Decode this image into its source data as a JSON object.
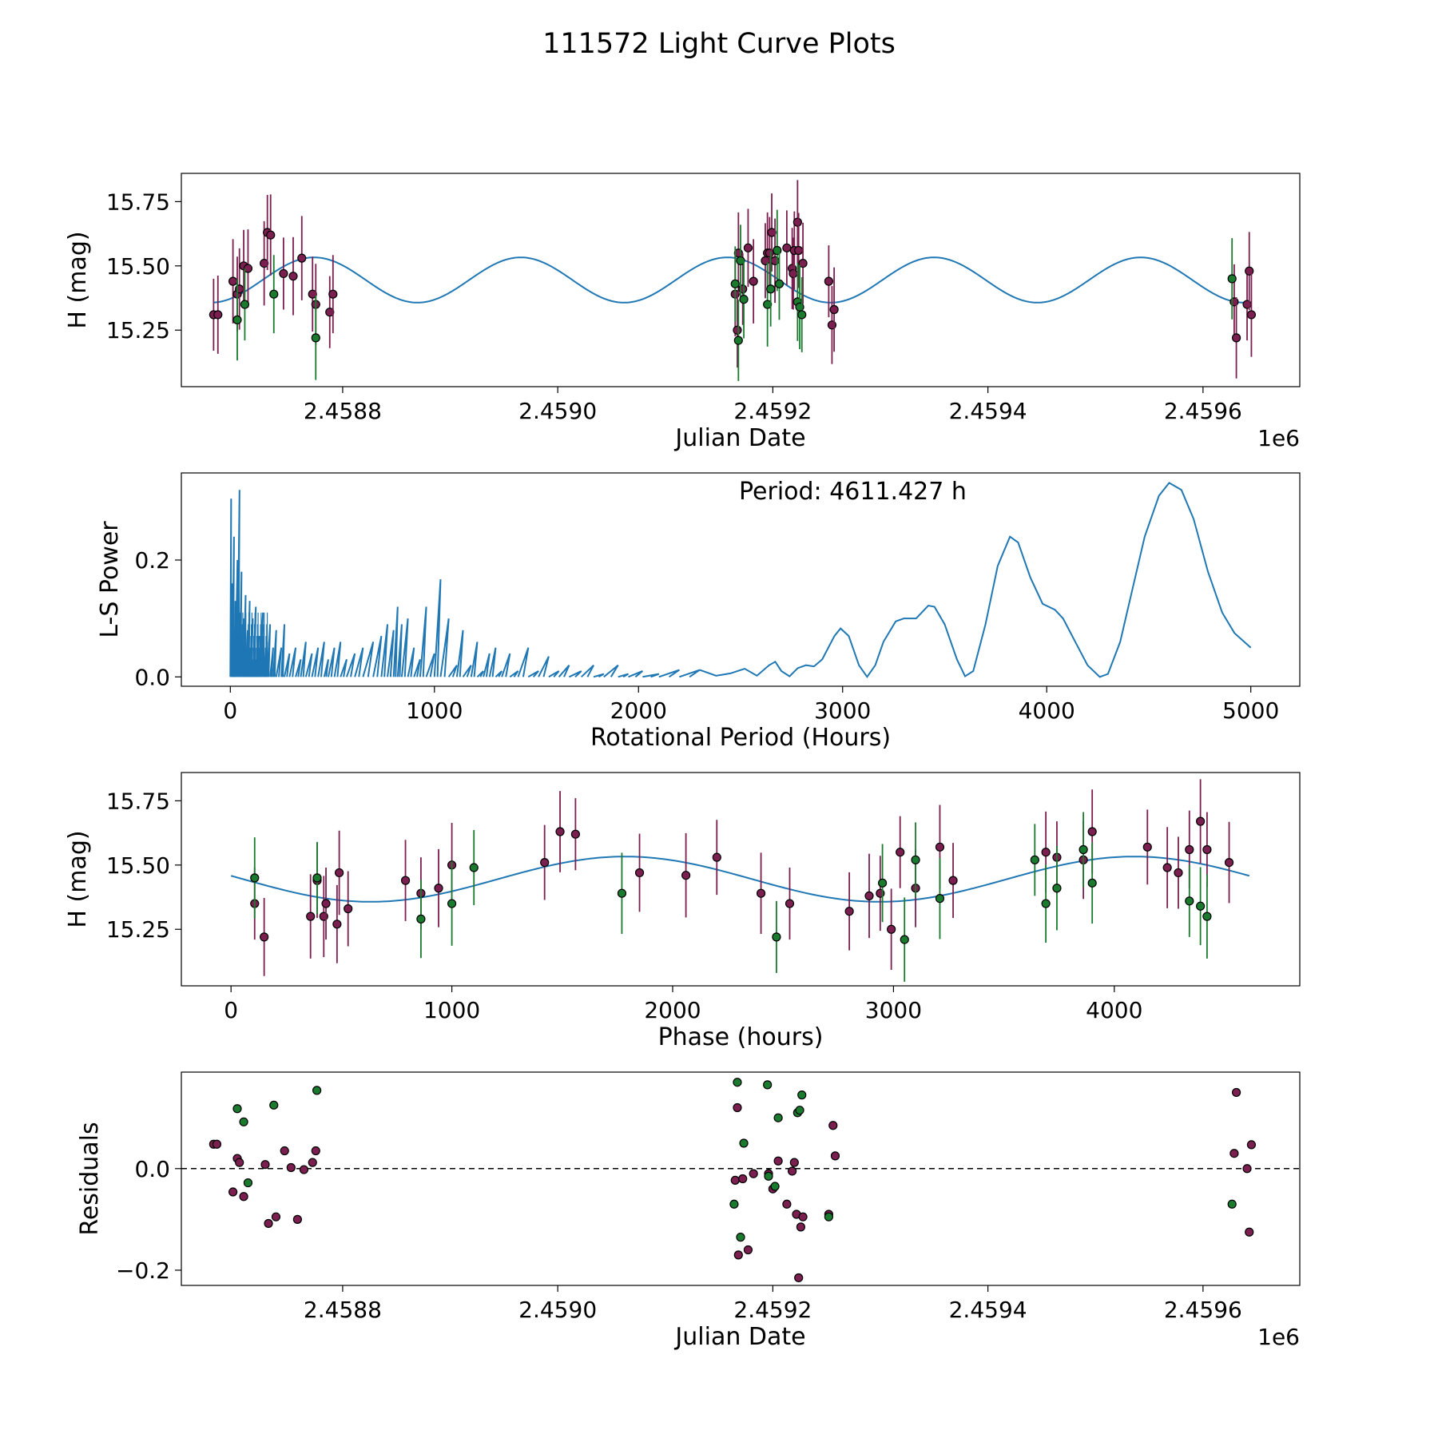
{
  "title": "111572 Light Curve Plots",
  "colors": {
    "model": "#1f77b4",
    "band_a": "#7a1f4f",
    "band_b": "#1a7a2e",
    "marker_edge": "#000000"
  },
  "chart_data": [
    {
      "type": "scatter",
      "name": "light-curve",
      "xlabel": "Julian Date",
      "ylabel": "H (mag)",
      "offset_label": "1e6",
      "xlim": [
        2.45865,
        2.45969
      ],
      "ylim": [
        15.03,
        15.86
      ],
      "xticks": [
        2.4588,
        2.459,
        2.4592,
        2.4594,
        2.4596
      ],
      "xtick_labels": [
        "2.4588",
        "2.4590",
        "2.4592",
        "2.4594",
        "2.4596"
      ],
      "yticks": [
        15.25,
        15.5,
        15.75
      ],
      "ytick_labels": [
        "15.25",
        "15.50",
        "15.75"
      ],
      "model": {
        "mean": 15.445,
        "amplitude": 0.088,
        "period": 0.000192143,
        "t0": 2.4586774,
        "x_start": 2.45868,
        "x_end": 2.45964
      },
      "series": [
        {
          "name": "band_a",
          "x": [
            2.45868,
            2.458684,
            2.458698,
            2.458702,
            2.458704,
            2.458708,
            2.458712,
            2.458727,
            2.45873,
            2.458733,
            2.458745,
            2.458754,
            2.458762,
            2.458772,
            2.458775,
            2.458788,
            2.458791,
            2.459165,
            2.459167,
            2.459168,
            2.459172,
            2.459177,
            2.459182,
            2.459193,
            2.459195,
            2.459197,
            2.459199,
            2.459202,
            2.459213,
            2.459218,
            2.459219,
            2.45922,
            2.459223,
            2.459224,
            2.459228,
            2.459252,
            2.459255,
            2.459257,
            2.459629,
            2.459631,
            2.459641,
            2.459643,
            2.459645
          ],
          "y": [
            15.31,
            15.31,
            15.44,
            15.39,
            15.41,
            15.5,
            15.49,
            15.51,
            15.63,
            15.62,
            15.47,
            15.46,
            15.53,
            15.39,
            15.35,
            15.32,
            15.39,
            15.39,
            15.25,
            15.55,
            15.41,
            15.57,
            15.44,
            15.52,
            15.55,
            15.55,
            15.63,
            15.52,
            15.57,
            15.49,
            15.47,
            15.56,
            15.67,
            15.56,
            15.51,
            15.44,
            15.27,
            15.33,
            15.36,
            15.22,
            15.35,
            15.48,
            15.31
          ]
        },
        {
          "name": "band_b",
          "x": [
            2.458702,
            2.458709,
            2.458736,
            2.458775,
            2.459165,
            2.459168,
            2.45917,
            2.459173,
            2.459195,
            2.459198,
            2.459204,
            2.459206,
            2.459223,
            2.459225,
            2.459227,
            2.459627
          ],
          "y": [
            15.29,
            15.35,
            15.39,
            15.22,
            15.43,
            15.21,
            15.52,
            15.37,
            15.35,
            15.41,
            15.56,
            15.43,
            15.36,
            15.34,
            15.31,
            15.45
          ]
        }
      ]
    },
    {
      "type": "line",
      "name": "periodogram",
      "xlabel": "Rotational Period (Hours)",
      "ylabel": "L-S Power",
      "annotation": "Period: 4611.427 h",
      "xlim": [
        -240,
        5240
      ],
      "ylim": [
        -0.016,
        0.349
      ],
      "xticks": [
        0,
        1000,
        2000,
        3000,
        4000,
        5000
      ],
      "xtick_labels": [
        "0",
        "1000",
        "2000",
        "3000",
        "4000",
        "5000"
      ],
      "yticks": [
        0.0,
        0.2
      ],
      "ytick_labels": [
        "0.0",
        "0.2"
      ],
      "spikes": [
        [
          4,
          0.305
        ],
        [
          10,
          0.16
        ],
        [
          18,
          0.24
        ],
        [
          25,
          0.13
        ],
        [
          35,
          0.2
        ],
        [
          45,
          0.32
        ],
        [
          55,
          0.18
        ],
        [
          65,
          0.1
        ],
        [
          75,
          0.14
        ],
        [
          85,
          0.08
        ],
        [
          95,
          0.13
        ],
        [
          110,
          0.1
        ],
        [
          125,
          0.12
        ],
        [
          140,
          0.07
        ],
        [
          160,
          0.11
        ],
        [
          180,
          0.06
        ],
        [
          195,
          0.09
        ],
        [
          210,
          0.05
        ],
        [
          225,
          0.08
        ],
        [
          250,
          0.05
        ],
        [
          265,
          0.09
        ],
        [
          290,
          0.04
        ],
        [
          320,
          0.05
        ],
        [
          345,
          0.03
        ],
        [
          370,
          0.06
        ],
        [
          400,
          0.04
        ],
        [
          430,
          0.05
        ],
        [
          460,
          0.06
        ],
        [
          480,
          0.03
        ],
        [
          510,
          0.05
        ],
        [
          540,
          0.06
        ],
        [
          570,
          0.03
        ],
        [
          610,
          0.04
        ],
        [
          650,
          0.05
        ],
        [
          700,
          0.06
        ],
        [
          740,
          0.07
        ],
        [
          770,
          0.09
        ],
        [
          800,
          0.08
        ],
        [
          820,
          0.12
        ],
        [
          840,
          0.09
        ],
        [
          870,
          0.1
        ],
        [
          900,
          0.05
        ],
        [
          930,
          0.03
        ],
        [
          960,
          0.12
        ],
        [
          1000,
          0.04
        ],
        [
          1030,
          0.167
        ],
        [
          1070,
          0.1
        ],
        [
          1110,
          0.02
        ],
        [
          1140,
          0.08
        ],
        [
          1180,
          0.02
        ],
        [
          1210,
          0.06
        ],
        [
          1240,
          0.01
        ],
        [
          1270,
          0.04
        ],
        [
          1300,
          0.05
        ],
        [
          1330,
          0.01
        ],
        [
          1370,
          0.04
        ],
        [
          1410,
          0.01
        ],
        [
          1460,
          0.05
        ],
        [
          1510,
          0.01
        ],
        [
          1560,
          0.035
        ],
        [
          1610,
          0.01
        ],
        [
          1660,
          0.02
        ],
        [
          1720,
          0.01
        ],
        [
          1780,
          0.02
        ],
        [
          1830,
          0.005
        ],
        [
          1900,
          0.02
        ],
        [
          1950,
          0.005
        ],
        [
          2020,
          0.01
        ],
        [
          2100,
          0.005
        ],
        [
          2200,
          0.012
        ],
        [
          2300,
          0.012
        ]
      ],
      "curve": [
        [
          2300,
          0.012
        ],
        [
          2380,
          0.002
        ],
        [
          2450,
          0.006
        ],
        [
          2520,
          0.014
        ],
        [
          2580,
          0.002
        ],
        [
          2640,
          0.02
        ],
        [
          2670,
          0.026
        ],
        [
          2700,
          0.01
        ],
        [
          2740,
          0.001
        ],
        [
          2780,
          0.015
        ],
        [
          2820,
          0.02
        ],
        [
          2860,
          0.018
        ],
        [
          2900,
          0.03
        ],
        [
          2960,
          0.07
        ],
        [
          2990,
          0.083
        ],
        [
          3030,
          0.07
        ],
        [
          3080,
          0.02
        ],
        [
          3120,
          0.0
        ],
        [
          3160,
          0.02
        ],
        [
          3200,
          0.06
        ],
        [
          3260,
          0.095
        ],
        [
          3300,
          0.1
        ],
        [
          3360,
          0.1
        ],
        [
          3420,
          0.122
        ],
        [
          3450,
          0.12
        ],
        [
          3500,
          0.09
        ],
        [
          3560,
          0.03
        ],
        [
          3600,
          0.001
        ],
        [
          3640,
          0.01
        ],
        [
          3700,
          0.09
        ],
        [
          3760,
          0.19
        ],
        [
          3820,
          0.24
        ],
        [
          3860,
          0.23
        ],
        [
          3920,
          0.17
        ],
        [
          3980,
          0.125
        ],
        [
          4040,
          0.115
        ],
        [
          4080,
          0.1
        ],
        [
          4140,
          0.06
        ],
        [
          4200,
          0.02
        ],
        [
          4260,
          0.0
        ],
        [
          4300,
          0.005
        ],
        [
          4360,
          0.06
        ],
        [
          4420,
          0.15
        ],
        [
          4480,
          0.24
        ],
        [
          4550,
          0.31
        ],
        [
          4600,
          0.332
        ],
        [
          4660,
          0.32
        ],
        [
          4720,
          0.27
        ],
        [
          4790,
          0.18
        ],
        [
          4860,
          0.11
        ],
        [
          4920,
          0.075
        ],
        [
          5000,
          0.05
        ]
      ]
    },
    {
      "type": "scatter",
      "name": "phase-folded",
      "xlabel": "Phase (hours)",
      "ylabel": "H (mag)",
      "xlim": [
        -225,
        4840
      ],
      "ylim": [
        15.03,
        15.86
      ],
      "xticks": [
        0,
        1000,
        2000,
        3000,
        4000
      ],
      "xtick_labels": [
        "0",
        "1000",
        "2000",
        "3000",
        "4000"
      ],
      "yticks": [
        15.25,
        15.5,
        15.75
      ],
      "ytick_labels": [
        "15.25",
        "15.50",
        "15.75"
      ],
      "model": {
        "mean": 15.445,
        "amplitude": 0.088,
        "period_hours": 4611.427,
        "phase_shift_hours": 0
      },
      "series": [
        {
          "name": "band_a",
          "x": [
            107,
            150,
            360,
            390,
            420,
            430,
            480,
            490,
            530,
            790,
            860,
            940,
            1000,
            1420,
            1490,
            1560,
            1850,
            2060,
            2200,
            2400,
            2530,
            2800,
            2890,
            2940,
            2990,
            3030,
            3100,
            3210,
            3270,
            3690,
            3740,
            3860,
            3900,
            4150,
            4240,
            4290,
            4340,
            4390,
            4420,
            4520
          ],
          "y": [
            15.35,
            15.22,
            15.3,
            15.44,
            15.3,
            15.35,
            15.27,
            15.47,
            15.33,
            15.44,
            15.39,
            15.41,
            15.5,
            15.51,
            15.63,
            15.62,
            15.47,
            15.46,
            15.53,
            15.39,
            15.35,
            15.32,
            15.38,
            15.39,
            15.25,
            15.55,
            15.41,
            15.57,
            15.44,
            15.55,
            15.53,
            15.52,
            15.63,
            15.57,
            15.49,
            15.47,
            15.56,
            15.67,
            15.56,
            15.51
          ]
        },
        {
          "name": "band_b",
          "x": [
            107,
            390,
            860,
            1000,
            1100,
            1770,
            2470,
            2950,
            3050,
            3100,
            3210,
            3640,
            3690,
            3740,
            3860,
            3900,
            4340,
            4390,
            4420
          ],
          "y": [
            15.45,
            15.45,
            15.29,
            15.35,
            15.49,
            15.39,
            15.22,
            15.43,
            15.21,
            15.52,
            15.37,
            15.52,
            15.35,
            15.41,
            15.56,
            15.43,
            15.36,
            15.34,
            15.3
          ]
        }
      ]
    },
    {
      "type": "scatter",
      "name": "residuals",
      "xlabel": "Julian Date",
      "ylabel": "Residuals",
      "offset_label": "1e6",
      "xlim": [
        2.45865,
        2.45969
      ],
      "ylim": [
        -0.23,
        0.19
      ],
      "xticks": [
        2.4588,
        2.459,
        2.4592,
        2.4594,
        2.4596
      ],
      "xtick_labels": [
        "2.4588",
        "2.4590",
        "2.4592",
        "2.4594",
        "2.4596"
      ],
      "yticks": [
        -0.2,
        0.0
      ],
      "ytick_labels": [
        "−0.2",
        "0.0"
      ],
      "series": [
        {
          "name": "band_a",
          "x": [
            2.45868,
            2.458683,
            2.458698,
            2.458702,
            2.458704,
            2.458708,
            2.458728,
            2.458731,
            2.458738,
            2.458746,
            2.458752,
            2.458758,
            2.458764,
            2.458772,
            2.458775,
            2.459165,
            2.459167,
            2.459168,
            2.459172,
            2.459177,
            2.459182,
            2.459196,
            2.4592,
            2.459205,
            2.459213,
            2.459218,
            2.45922,
            2.459222,
            2.459224,
            2.459226,
            2.459228,
            2.459252,
            2.459256,
            2.459258,
            2.459629,
            2.459631,
            2.459641,
            2.459643,
            2.459645
          ],
          "y": [
            0.048,
            0.048,
            -0.046,
            0.02,
            0.012,
            -0.055,
            0.008,
            -0.108,
            -0.095,
            0.035,
            0.002,
            -0.1,
            -0.002,
            0.012,
            0.035,
            -0.023,
            0.12,
            -0.17,
            -0.02,
            -0.16,
            -0.01,
            -0.01,
            -0.04,
            0.015,
            -0.07,
            -0.005,
            0.012,
            -0.09,
            -0.215,
            -0.115,
            -0.095,
            -0.09,
            0.085,
            0.025,
            0.03,
            0.15,
            0.0,
            -0.125,
            0.047
          ]
        },
        {
          "name": "band_b",
          "x": [
            2.458702,
            2.458708,
            2.458712,
            2.458736,
            2.458776,
            2.459164,
            2.459167,
            2.45917,
            2.459173,
            2.459195,
            2.459196,
            2.459202,
            2.459205,
            2.459223,
            2.459225,
            2.459227,
            2.459252,
            2.459627
          ],
          "y": [
            0.118,
            0.092,
            -0.028,
            0.125,
            0.154,
            -0.07,
            0.17,
            -0.135,
            0.05,
            0.165,
            -0.015,
            -0.035,
            0.1,
            0.11,
            0.115,
            0.145,
            -0.095,
            -0.07
          ]
        }
      ]
    }
  ]
}
